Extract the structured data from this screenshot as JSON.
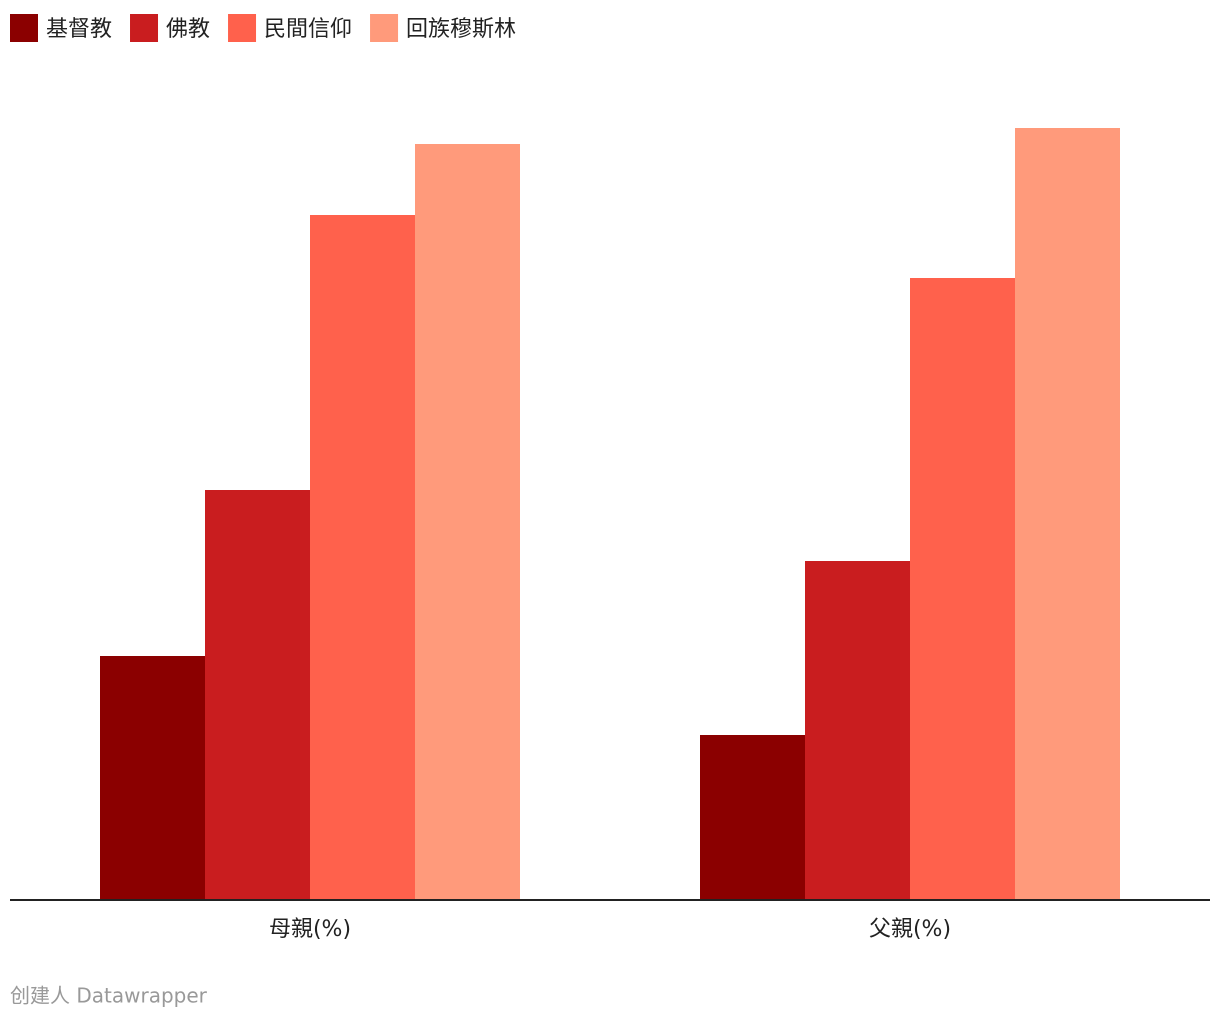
{
  "chart_data": {
    "type": "bar",
    "categories": [
      "母親(%)",
      "父親(%)"
    ],
    "series": [
      {
        "name": "基督教",
        "color": "#8b0000",
        "values": [
          24.4,
          16.5
        ]
      },
      {
        "name": "佛教",
        "color": "#c91d1f",
        "values": [
          41,
          33.9
        ]
      },
      {
        "name": "民間信仰",
        "color": "#ff614c",
        "values": [
          68.5,
          62.2
        ]
      },
      {
        "name": "回族穆斯林",
        "color": "#ff9a7b",
        "values": [
          75.6,
          77.2
        ]
      }
    ],
    "ylim": [
      0,
      80
    ],
    "credit": "创建人 Datawrapper"
  }
}
